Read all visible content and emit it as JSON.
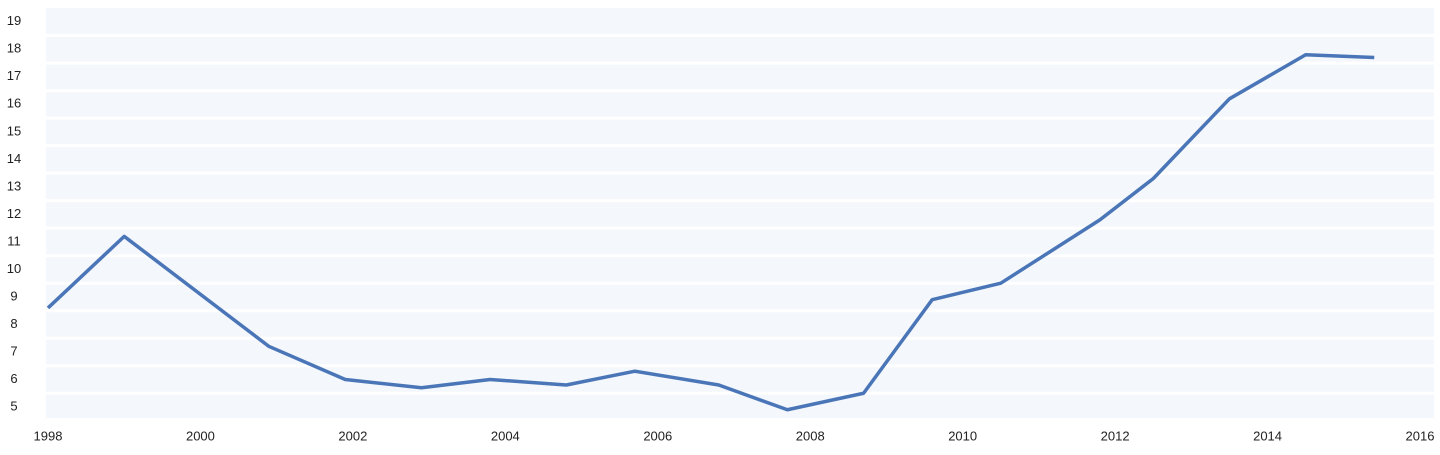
{
  "chart_data": {
    "type": "line",
    "x": [
      1998,
      1999,
      2000.9,
      2001.9,
      2002.9,
      2003.8,
      2004.8,
      2005.7,
      2006.8,
      2007.7,
      2008.7,
      2009.6,
      2010.5,
      2011.8,
      2012.5,
      2013.5,
      2014.5,
      2015.4
    ],
    "series": [
      {
        "color": "#4a76b8",
        "values": [
          8.6,
          11.2,
          7.2,
          6.0,
          5.7,
          6.0,
          5.8,
          6.3,
          5.8,
          4.9,
          5.5,
          8.9,
          9.5,
          11.8,
          13.3,
          16.2,
          17.8,
          17.7
        ]
      }
    ],
    "xlim": [
      1998,
      2016
    ],
    "xticks": [
      1998,
      2000,
      2002,
      2004,
      2006,
      2008,
      2010,
      2012,
      2014,
      2016
    ],
    "ylim": [
      4.6,
      19.5
    ],
    "yticks": [
      5,
      6,
      7,
      8,
      9,
      10,
      11,
      12,
      13,
      14,
      15,
      16,
      17,
      18,
      19
    ],
    "grid": true
  }
}
